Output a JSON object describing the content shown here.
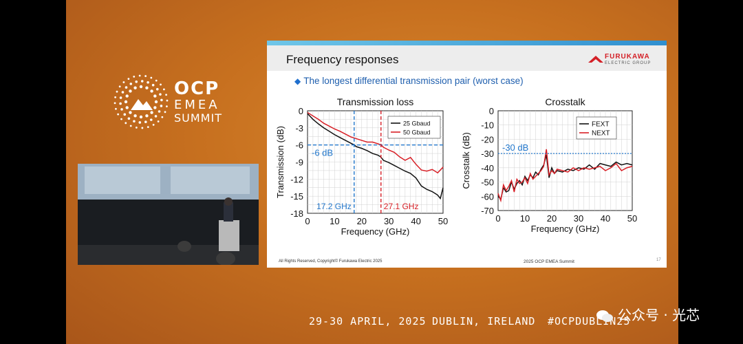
{
  "event": {
    "logo_line1": "OCP",
    "logo_line2": "EMEA",
    "logo_line3": "SUMMIT",
    "dates": "29-30 APRIL, 2025",
    "location": "DUBLIN, IRELAND",
    "hashtag": "#OCPDUBLIN25"
  },
  "watermark": "公众号 · 光芯",
  "slide": {
    "title": "Frequency responses",
    "brand_name": "FURUKAWA",
    "brand_sub": "ELECTRIC GROUP",
    "bullet": "The longest differential transmission pair (worst case)",
    "footer_left": "All Rights Reserved, Copyright© Furukawa Electric 2025",
    "footer_center": "2025 OCP EMEA Summit",
    "page_number": "17"
  },
  "colors": {
    "black_series": "#111111",
    "red_series": "#d81f26",
    "annotation_blue": "#2277cc"
  },
  "chart_data": [
    {
      "type": "line",
      "title": "Transmission loss",
      "xlabel": "Frequency (GHz)",
      "ylabel": "Transmission (dB)",
      "xlim": [
        0,
        50
      ],
      "ylim": [
        -18,
        0
      ],
      "xticks": [
        0,
        10,
        20,
        30,
        40,
        50
      ],
      "yticks": [
        0,
        -3,
        -6,
        -9,
        -12,
        -15,
        -18
      ],
      "grid": true,
      "legend": "top-right",
      "series": [
        {
          "name": "25 Gbaud",
          "color": "#111111",
          "x": [
            0,
            2,
            4,
            6,
            8,
            10,
            12,
            14,
            16,
            17.2,
            18,
            20,
            22,
            24,
            26,
            27,
            28,
            30,
            32,
            34,
            36,
            38,
            40,
            42,
            44,
            46,
            48,
            49,
            50
          ],
          "y": [
            -0.5,
            -1.5,
            -2.3,
            -3.0,
            -3.6,
            -4.2,
            -4.7,
            -5.2,
            -5.7,
            -6.0,
            -6.3,
            -6.6,
            -7.0,
            -7.5,
            -7.8,
            -8.1,
            -8.7,
            -9.1,
            -9.6,
            -10.1,
            -10.6,
            -11.0,
            -11.8,
            -13.2,
            -13.8,
            -14.2,
            -14.8,
            -15.4,
            -13.5
          ]
        },
        {
          "name": "50 Gbaud",
          "color": "#d81f26",
          "x": [
            0,
            2,
            4,
            6,
            8,
            10,
            12,
            14,
            16,
            18,
            20,
            22,
            24,
            26,
            27.1,
            28,
            30,
            32,
            34,
            36,
            38,
            40,
            42,
            44,
            46,
            48,
            50
          ],
          "y": [
            -0.3,
            -0.9,
            -1.5,
            -2.2,
            -2.7,
            -3.2,
            -3.6,
            -4.1,
            -4.6,
            -4.9,
            -5.2,
            -5.5,
            -5.5,
            -5.8,
            -6.0,
            -6.4,
            -6.9,
            -7.3,
            -8.1,
            -8.7,
            -8.2,
            -9.4,
            -10.4,
            -10.6,
            -10.3,
            -10.9,
            -9.9
          ]
        }
      ],
      "annotations": [
        {
          "text": "-6 dB",
          "type": "hline",
          "y": -6
        },
        {
          "text": "17.2 GHz",
          "type": "vline",
          "x": 17.2
        },
        {
          "text": "27.1 GHz",
          "type": "vline",
          "x": 27.1
        }
      ]
    },
    {
      "type": "line",
      "title": "Crosstalk",
      "xlabel": "Frequency (GHz)",
      "ylabel": "Crosstalk (dB)",
      "xlim": [
        0,
        50
      ],
      "ylim": [
        -70,
        0
      ],
      "xticks": [
        0,
        10,
        20,
        30,
        40,
        50
      ],
      "yticks": [
        0,
        -10,
        -20,
        -30,
        -40,
        -50,
        -60,
        -70
      ],
      "grid": true,
      "legend": "top-right",
      "series": [
        {
          "name": "FEXT",
          "color": "#111111",
          "x": [
            0,
            1,
            2,
            3,
            4,
            5,
            6,
            7,
            8,
            9,
            10,
            11,
            12,
            13,
            14,
            15,
            16,
            17,
            18,
            19,
            20,
            21,
            22,
            24,
            26,
            28,
            30,
            32,
            34,
            36,
            38,
            40,
            42,
            44,
            46,
            48,
            50
          ],
          "y": [
            -60,
            -62,
            -54,
            -57,
            -56,
            -50,
            -55,
            -51,
            -49,
            -52,
            -46,
            -49,
            -45,
            -47,
            -43,
            -45,
            -41,
            -38,
            -31,
            -47,
            -40,
            -44,
            -42,
            -43,
            -41,
            -42,
            -40,
            -41,
            -38,
            -41,
            -37,
            -38,
            -39,
            -36,
            -38,
            -37,
            -38
          ]
        },
        {
          "name": "NEXT",
          "color": "#d81f26",
          "x": [
            0,
            1,
            2,
            3,
            4,
            5,
            6,
            7,
            8,
            9,
            10,
            11,
            12,
            13,
            14,
            15,
            16,
            17,
            18,
            19,
            20,
            21,
            22,
            24,
            26,
            28,
            30,
            32,
            34,
            36,
            38,
            40,
            42,
            44,
            46,
            48,
            50
          ],
          "y": [
            -58,
            -63,
            -52,
            -56,
            -53,
            -49,
            -57,
            -48,
            -51,
            -50,
            -47,
            -51,
            -44,
            -48,
            -46,
            -44,
            -42,
            -39,
            -27,
            -45,
            -42,
            -44,
            -41,
            -42,
            -43,
            -40,
            -42,
            -40,
            -41,
            -40,
            -39,
            -42,
            -40,
            -37,
            -42,
            -40,
            -39
          ]
        }
      ],
      "annotations": [
        {
          "text": "-30 dB",
          "type": "hline",
          "y": -30
        }
      ]
    }
  ]
}
